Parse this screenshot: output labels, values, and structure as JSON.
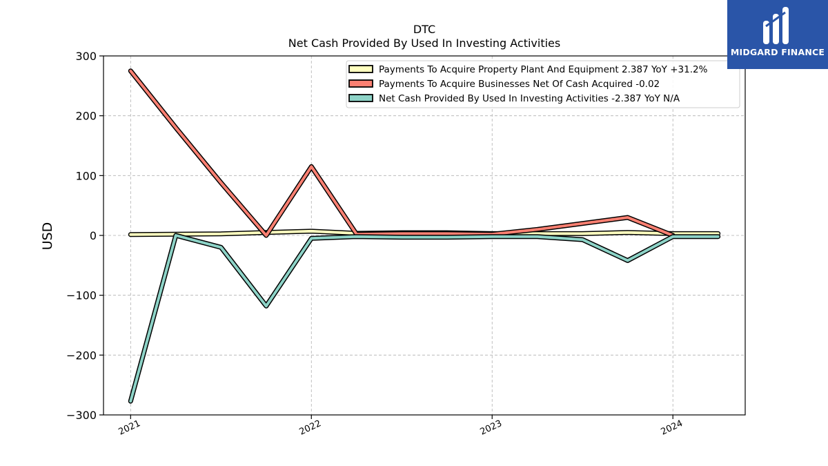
{
  "chart_data": {
    "type": "line",
    "title": "DTC",
    "subtitle": "Net Cash Provided By Used In Investing Activities",
    "ylabel": "USD",
    "xlabel": "",
    "ylim": [
      -300,
      300
    ],
    "yticks": [
      300,
      200,
      100,
      0,
      -100,
      -200,
      -300
    ],
    "ytick_labels": [
      "300",
      "200",
      "100",
      "0",
      "−100",
      "−200",
      "−300"
    ],
    "xlim": [
      2020.85,
      2024.4
    ],
    "xticks": [
      2021,
      2022,
      2023,
      2024
    ],
    "xtick_labels": [
      "2021",
      "2022",
      "2023",
      "2024"
    ],
    "grid": true,
    "legend_position": "top-right",
    "series": [
      {
        "name": "Payments To Acquire Property Plant And Equipment  2.387 YoY +31.2%",
        "color": "#ffffbf",
        "x": [
          2021.0,
          2021.25,
          2021.5,
          2021.75,
          2022.0,
          2022.25,
          2022.5,
          2022.75,
          2023.0,
          2023.25,
          2023.5,
          2023.75,
          2024.0,
          2024.25
        ],
        "y": [
          1.5,
          2.0,
          2.5,
          5.0,
          7.0,
          3.5,
          4.5,
          4.5,
          3.0,
          3.0,
          3.0,
          5.0,
          3.0,
          3.0
        ]
      },
      {
        "name": "Payments To Acquire Businesses Net Of Cash Acquired  -0.02",
        "color": "#fb8072",
        "x": [
          2021.0,
          2021.25,
          2021.5,
          2021.75,
          2022.0,
          2022.25,
          2022.5,
          2022.75,
          2023.0,
          2023.25,
          2023.5,
          2023.75,
          2024.0
        ],
        "y": [
          275,
          180,
          88,
          0,
          115,
          2,
          3,
          3,
          2,
          10,
          20,
          30,
          0
        ]
      },
      {
        "name": "Net Cash Provided By Used In Investing Activities  -2.387 YoY N/A",
        "color": "#8dd3c7",
        "x": [
          2021.0,
          2021.25,
          2021.5,
          2021.75,
          2022.0,
          2022.25,
          2022.5,
          2022.75,
          2023.0,
          2023.25,
          2023.5,
          2023.75,
          2024.0,
          2024.25
        ],
        "y": [
          -277,
          0,
          -20,
          -118,
          -5,
          -2,
          -3,
          -3,
          -2,
          -2,
          -7,
          -42,
          -2,
          -2
        ]
      }
    ]
  },
  "logo": {
    "text": "MIDGARD FINANCE",
    "color": "#2a55a8"
  }
}
